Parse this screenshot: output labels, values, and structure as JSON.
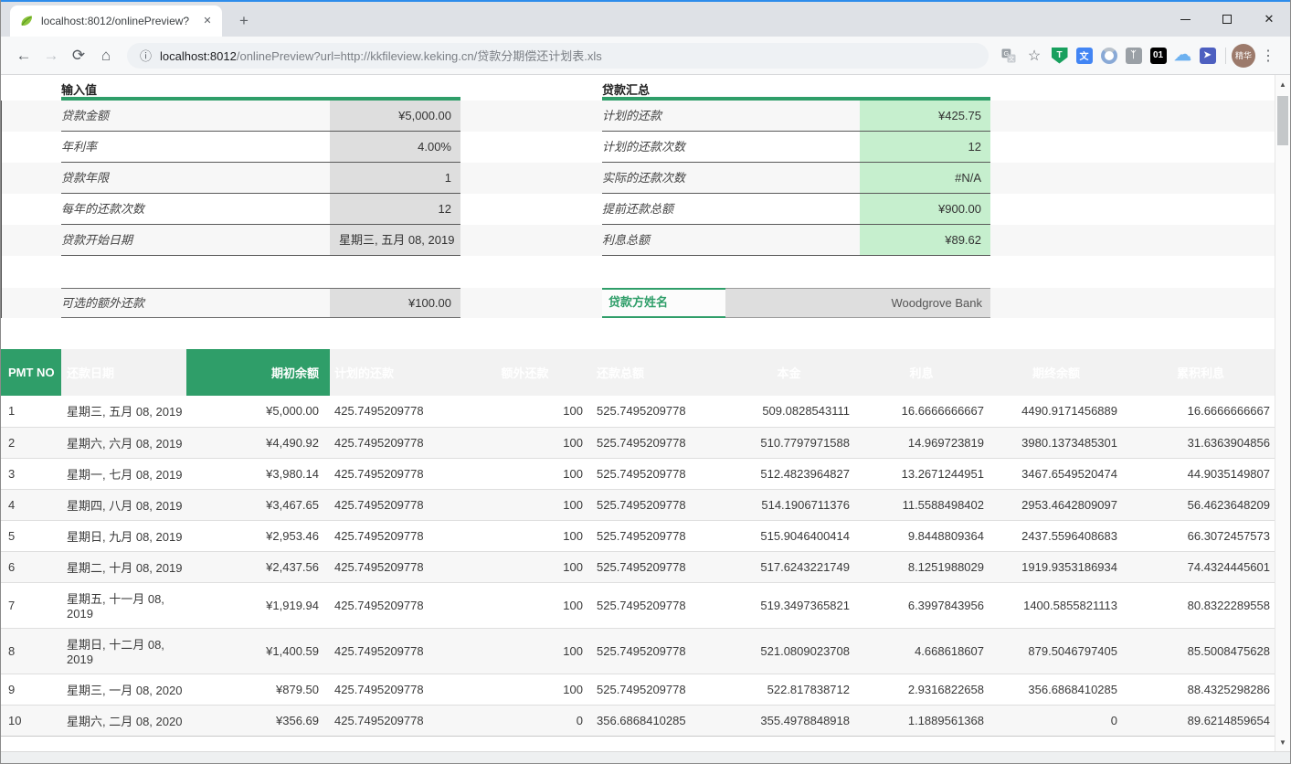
{
  "browser": {
    "tab_title": "localhost:8012/onlinePreview?",
    "url_host": "localhost:8012",
    "url_rest": "/onlinePreview?url=http://kkfileview.keking.cn/贷款分期偿还计划表.xls",
    "profile_initials": "精华"
  },
  "icons": {
    "back": "←",
    "forward": "→",
    "reload": "⟳",
    "home": "⌂",
    "info": "ⓘ",
    "star": "☆",
    "menu": "⋮",
    "close_tab": "✕",
    "new_tab": "+",
    "win_close": "✕",
    "up_arrow": "▲",
    "down_arrow": "▼"
  },
  "toolbar_extensions": [
    {
      "name": "shield-extension-icon",
      "glyph": "T",
      "bg": "#18a05e"
    },
    {
      "name": "translate-extension-icon",
      "glyph": "文",
      "bg": "#4285f4"
    },
    {
      "name": "swirl-extension-icon",
      "glyph": "",
      "bg": ""
    },
    {
      "name": "sitemap-extension-icon",
      "glyph": "ᛉ",
      "bg": "#9aa0a6"
    },
    {
      "name": "zero-one-extension-icon",
      "glyph": "01",
      "bg": "#000000"
    },
    {
      "name": "cloud-extension-icon",
      "glyph": "☁",
      "bg": ""
    },
    {
      "name": "swallow-extension-icon",
      "glyph": "➤",
      "bg": "#4d5fc0"
    }
  ],
  "sheet": {
    "inputs": {
      "title": "输入值",
      "rows": [
        {
          "label": "贷款金额",
          "value": "¥5,000.00"
        },
        {
          "label": "年利率",
          "value": "4.00%"
        },
        {
          "label": "贷款年限",
          "value": "1"
        },
        {
          "label": "每年的还款次数",
          "value": "12"
        },
        {
          "label": "贷款开始日期",
          "value": "星期三, 五月 08, 2019"
        }
      ],
      "extra": {
        "label": "可选的额外还款",
        "value": "¥100.00"
      }
    },
    "summary": {
      "title": "贷款汇总",
      "rows": [
        {
          "label": "计划的还款",
          "value": "¥425.75"
        },
        {
          "label": "计划的还款次数",
          "value": "12"
        },
        {
          "label": "实际的还款次数",
          "value": "#N/A"
        },
        {
          "label": "提前还款总额",
          "value": "¥900.00"
        },
        {
          "label": "利息总额",
          "value": "¥89.62"
        }
      ],
      "lender": {
        "label": "贷款方姓名",
        "value": "Woodgrove Bank"
      }
    },
    "schedule": {
      "columns": [
        "PMT NO",
        "还款日期",
        "期初余额",
        "计划的还款",
        "额外还款",
        "还款总额",
        "本金",
        "利息",
        "期终余额",
        "累积利息"
      ],
      "rows": [
        [
          "1",
          "星期三, 五月 08, 2019",
          "¥5,000.00",
          "425.7495209778",
          "100",
          "525.7495209778",
          "509.0828543111",
          "16.6666666667",
          "4490.9171456889",
          "16.6666666667"
        ],
        [
          "2",
          "星期六, 六月 08, 2019",
          "¥4,490.92",
          "425.7495209778",
          "100",
          "525.7495209778",
          "510.7797971588",
          "14.969723819",
          "3980.1373485301",
          "31.6363904856"
        ],
        [
          "3",
          "星期一, 七月 08, 2019",
          "¥3,980.14",
          "425.7495209778",
          "100",
          "525.7495209778",
          "512.4823964827",
          "13.2671244951",
          "3467.6549520474",
          "44.9035149807"
        ],
        [
          "4",
          "星期四, 八月 08, 2019",
          "¥3,467.65",
          "425.7495209778",
          "100",
          "525.7495209778",
          "514.1906711376",
          "11.5588498402",
          "2953.4642809097",
          "56.4623648209"
        ],
        [
          "5",
          "星期日, 九月 08, 2019",
          "¥2,953.46",
          "425.7495209778",
          "100",
          "525.7495209778",
          "515.9046400414",
          "9.8448809364",
          "2437.5596408683",
          "66.3072457573"
        ],
        [
          "6",
          "星期二, 十月 08, 2019",
          "¥2,437.56",
          "425.7495209778",
          "100",
          "525.7495209778",
          "517.6243221749",
          "8.1251988029",
          "1919.9353186934",
          "74.4324445601"
        ],
        [
          "7",
          "星期五, 十一月 08, 2019",
          "¥1,919.94",
          "425.7495209778",
          "100",
          "525.7495209778",
          "519.3497365821",
          "6.3997843956",
          "1400.5855821113",
          "80.8322289558"
        ],
        [
          "8",
          "星期日, 十二月 08, 2019",
          "¥1,400.59",
          "425.7495209778",
          "100",
          "525.7495209778",
          "521.0809023708",
          "4.668618607",
          "879.5046797405",
          "85.5008475628"
        ],
        [
          "9",
          "星期三, 一月 08, 2020",
          "¥879.50",
          "425.7495209778",
          "100",
          "525.7495209778",
          "522.817838712",
          "2.9316822658",
          "356.6868410285",
          "88.4325298286"
        ],
        [
          "10",
          "星期六, 二月 08, 2020",
          "¥356.69",
          "425.7495209778",
          "0",
          "356.6868410285",
          "355.4978848918",
          "1.1889561368",
          "0",
          "89.6214859654"
        ]
      ]
    }
  },
  "colors": {
    "accent_green": "#2f9e69",
    "good_cell_green": "#c6efce",
    "value_cell_grey": "#dedede"
  }
}
